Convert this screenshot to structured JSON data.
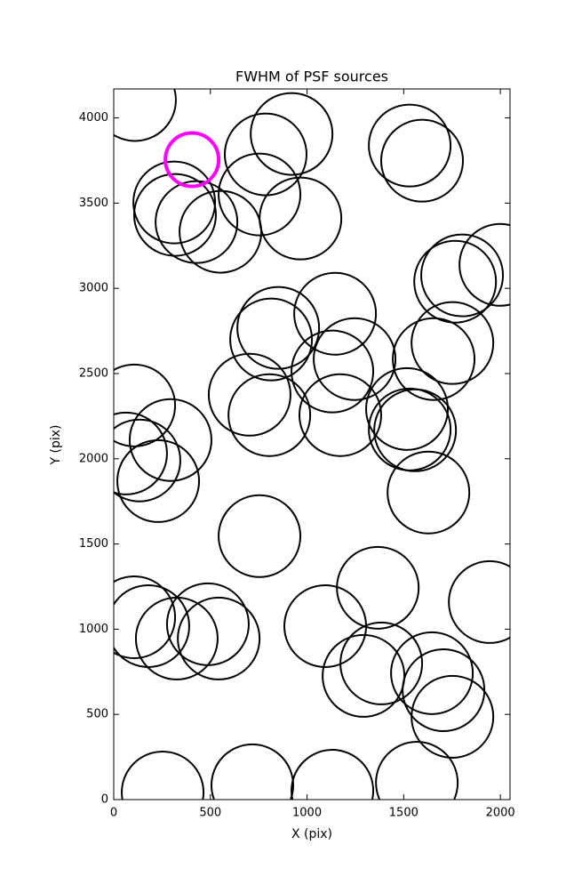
{
  "chart_data": {
    "type": "scatter",
    "title": "FWHM of PSF sources",
    "xlabel": "X (pix)",
    "ylabel": "Y (pix)",
    "xlim": [
      0,
      2050
    ],
    "ylim": [
      0,
      4170
    ],
    "xticks": [
      0,
      500,
      1000,
      1500,
      2000
    ],
    "yticks": [
      0,
      500,
      1000,
      1500,
      2000,
      2500,
      3000,
      3500,
      4000
    ],
    "marker": "hollow-circle",
    "series": [
      {
        "color": "#000000",
        "x": [
          110,
          920,
          786,
          754,
          966,
          313,
          317,
          428,
          552,
          1531,
          1595,
          2000,
          1802,
          1766,
          1145,
          851,
          814,
          1752,
          1246,
          1131,
          1655,
          106,
          703,
          805,
          1172,
          1517,
          1531,
          1559,
          64,
          294,
          133,
          230,
          1628,
          754,
          1366,
          1945,
          106,
          179,
          487,
          1094,
          326,
          543,
          1384,
          1292,
          1646,
          1706,
          1752,
          253,
          717,
          1131,
          1568
        ],
        "y": [
          4105,
          3906,
          3786,
          3551,
          3410,
          3504,
          3431,
          3389,
          3332,
          3838,
          3749,
          3138,
          3076,
          3039,
          2851,
          2768,
          2700,
          2679,
          2585,
          2512,
          2585,
          2313,
          2376,
          2256,
          2256,
          2292,
          2172,
          2167,
          2031,
          2110,
          1990,
          1869,
          1802,
          1546,
          1243,
          1159,
          1070,
          1018,
          1029,
          1018,
          945,
          945,
          799,
          726,
          742,
          642,
          486,
          42,
          84,
          52,
          99
        ]
      },
      {
        "color": "#ff00ff",
        "x": [
          405
        ],
        "y": [
          3755
        ]
      }
    ]
  }
}
